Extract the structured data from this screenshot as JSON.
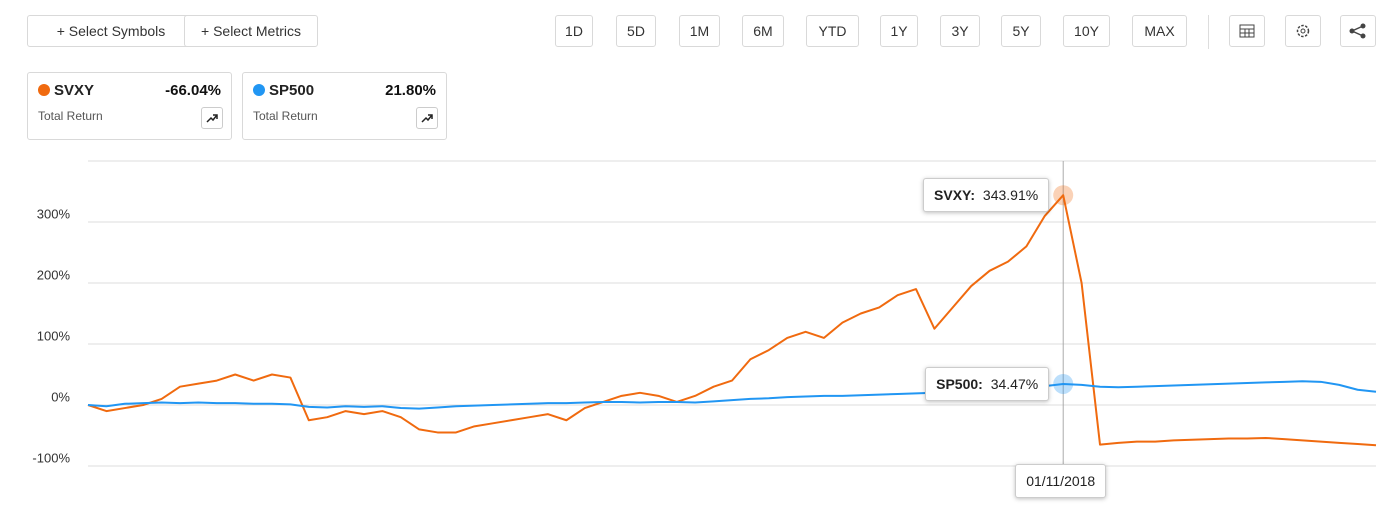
{
  "toolbar": {
    "buttons": [
      "+ Select Symbols",
      "+ Select Metrics"
    ],
    "ranges": [
      "1D",
      "5D",
      "1M",
      "6M",
      "YTD",
      "1Y",
      "3Y",
      "5Y",
      "10Y",
      "MAX"
    ]
  },
  "metric": "Total Return",
  "chart_data": {
    "type": "line",
    "series": [
      {
        "name": "SVXY",
        "color": "#f06a0f",
        "total_return": {
          "value": -66.04,
          "label": "-66.04%"
        },
        "values": [
          0,
          -10,
          -5,
          0,
          10,
          30,
          35,
          40,
          50,
          40,
          50,
          45,
          -25,
          -20,
          -10,
          -15,
          -10,
          -20,
          -40,
          -45,
          -45,
          -35,
          -30,
          -25,
          -20,
          -15,
          -25,
          -5,
          5,
          15,
          20,
          15,
          5,
          15,
          30,
          40,
          75,
          90,
          110,
          120,
          110,
          135,
          150,
          160,
          180,
          190,
          125,
          160,
          195,
          220,
          235,
          260,
          310,
          343.91,
          200,
          -65,
          -62,
          -60,
          -60,
          -58,
          -57,
          -56,
          -55,
          -55,
          -54,
          -56,
          -58,
          -60,
          -62,
          -64,
          -66.04
        ]
      },
      {
        "name": "SP500",
        "color": "#2196f3",
        "total_return": {
          "value": 21.8,
          "label": "21.80%"
        },
        "values": [
          0,
          -2,
          2,
          3,
          4,
          3,
          4,
          3,
          3,
          2,
          2,
          1,
          -3,
          -4,
          -2,
          -3,
          -2,
          -5,
          -6,
          -4,
          -2,
          -1,
          0,
          1,
          2,
          3,
          3,
          4,
          5,
          5,
          4,
          5,
          5,
          4,
          6,
          8,
          10,
          11,
          13,
          14,
          15,
          15,
          16,
          17,
          18,
          19,
          20,
          21,
          22,
          24,
          26,
          28,
          31,
          34.47,
          33,
          30,
          29,
          30,
          31,
          32,
          33,
          34,
          35,
          36,
          37,
          38,
          39,
          38,
          33,
          25,
          21.8
        ]
      }
    ],
    "ylim": [
      -100,
      400
    ],
    "yticks": [
      {
        "value": -100,
        "label": "-100%"
      },
      {
        "value": 0,
        "label": "0%"
      },
      {
        "value": 100,
        "label": "100%"
      },
      {
        "value": 200,
        "label": "200%"
      },
      {
        "value": 300,
        "label": "300%"
      }
    ],
    "grid": true,
    "tooltip": {
      "index": 53,
      "date": "01/11/2018",
      "items": [
        {
          "series": 0,
          "value": 343.91,
          "label": "343.91%"
        },
        {
          "series": 1,
          "value": 34.47,
          "label": "34.47%"
        }
      ]
    }
  }
}
